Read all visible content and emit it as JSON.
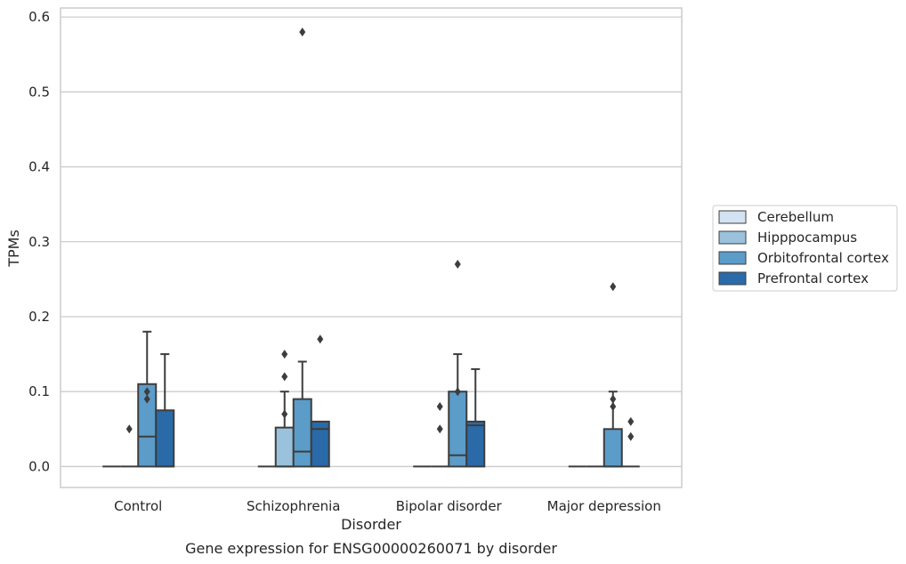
{
  "caption": "Gene expression for ENSG00000260071 by disorder",
  "chart_data": {
    "type": "box",
    "title": "",
    "xlabel": "Disorder",
    "ylabel": "TPMs",
    "ylim": [
      -0.028,
      0.612
    ],
    "yticks": [
      "0.0",
      "0.1",
      "0.2",
      "0.3",
      "0.4",
      "0.5",
      "0.6"
    ],
    "ytick_values": [
      0.0,
      0.1,
      0.2,
      0.3,
      0.4,
      0.5,
      0.6
    ],
    "grid": "horizontal",
    "legend_position": "right",
    "categories": [
      "Control",
      "Schizophrenia",
      "Bipolar disorder",
      "Major depression"
    ],
    "series": [
      {
        "name": "Cerebellum",
        "color": "#d4e3f3",
        "boxes": [
          {
            "category": "Control",
            "q1": 0.0,
            "median": 0.0,
            "q3": 0.0,
            "whislo": 0.0,
            "whishi": 0.0,
            "fliers": []
          },
          {
            "category": "Schizophrenia",
            "q1": 0.0,
            "median": 0.0,
            "q3": 0.0,
            "whislo": 0.0,
            "whishi": 0.0,
            "fliers": []
          },
          {
            "category": "Bipolar disorder",
            "q1": 0.0,
            "median": 0.0,
            "q3": 0.0,
            "whislo": 0.0,
            "whishi": 0.0,
            "fliers": []
          },
          {
            "category": "Major depression",
            "q1": 0.0,
            "median": 0.0,
            "q3": 0.0,
            "whislo": 0.0,
            "whishi": 0.0,
            "fliers": []
          }
        ]
      },
      {
        "name": "Hipppocampus",
        "color": "#9ac2dd",
        "boxes": [
          {
            "category": "Control",
            "q1": 0.0,
            "median": 0.0,
            "q3": 0.0,
            "whislo": 0.0,
            "whishi": 0.0,
            "fliers": [
              0.05
            ]
          },
          {
            "category": "Schizophrenia",
            "q1": 0.0,
            "median": 0.0,
            "q3": 0.052,
            "whislo": 0.0,
            "whishi": 0.1,
            "fliers": [
              0.07,
              0.12,
              0.15
            ]
          },
          {
            "category": "Bipolar disorder",
            "q1": 0.0,
            "median": 0.0,
            "q3": 0.0,
            "whislo": 0.0,
            "whishi": 0.0,
            "fliers": [
              0.05,
              0.08
            ]
          },
          {
            "category": "Major depression",
            "q1": 0.0,
            "median": 0.0,
            "q3": 0.0,
            "whislo": 0.0,
            "whishi": 0.0,
            "fliers": []
          }
        ]
      },
      {
        "name": "Orbitofrontal cortex",
        "color": "#5b9cc9",
        "boxes": [
          {
            "category": "Control",
            "q1": 0.0,
            "median": 0.04,
            "q3": 0.11,
            "whislo": 0.0,
            "whishi": 0.18,
            "fliers": [
              0.09,
              0.1
            ]
          },
          {
            "category": "Schizophrenia",
            "q1": 0.0,
            "median": 0.02,
            "q3": 0.09,
            "whislo": 0.0,
            "whishi": 0.14,
            "fliers": [
              0.58
            ]
          },
          {
            "category": "Bipolar disorder",
            "q1": 0.0,
            "median": 0.015,
            "q3": 0.1,
            "whislo": 0.0,
            "whishi": 0.15,
            "fliers": [
              0.1,
              0.27
            ]
          },
          {
            "category": "Major depression",
            "q1": 0.0,
            "median": 0.0,
            "q3": 0.05,
            "whislo": 0.0,
            "whishi": 0.1,
            "fliers": [
              0.08,
              0.09,
              0.24
            ]
          }
        ]
      },
      {
        "name": "Prefrontal cortex",
        "color": "#2a6aa8",
        "boxes": [
          {
            "category": "Control",
            "q1": 0.0,
            "median": 0.0,
            "q3": 0.075,
            "whislo": 0.0,
            "whishi": 0.15,
            "fliers": []
          },
          {
            "category": "Schizophrenia",
            "q1": 0.0,
            "median": 0.05,
            "q3": 0.06,
            "whislo": 0.0,
            "whishi": 0.06,
            "fliers": [
              0.17
            ]
          },
          {
            "category": "Bipolar disorder",
            "q1": 0.0,
            "median": 0.055,
            "q3": 0.06,
            "whislo": 0.0,
            "whishi": 0.13,
            "fliers": []
          },
          {
            "category": "Major depression",
            "q1": 0.0,
            "median": 0.0,
            "q3": 0.0,
            "whislo": 0.0,
            "whishi": 0.0,
            "fliers": [
              0.04,
              0.06
            ]
          }
        ]
      }
    ]
  }
}
